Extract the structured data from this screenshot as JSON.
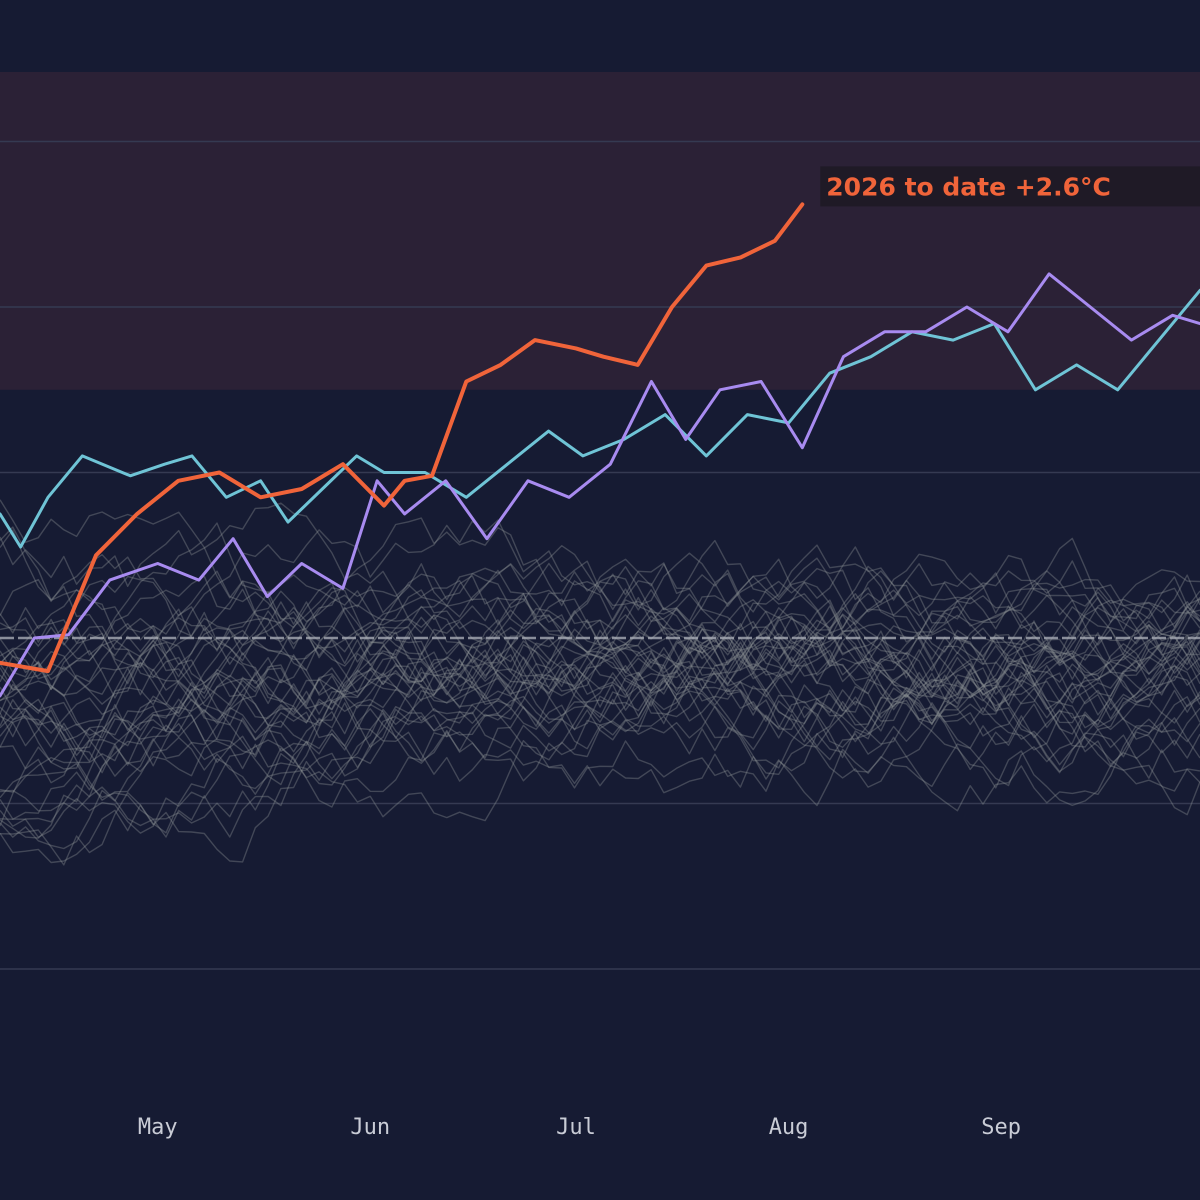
{
  "chart_data": {
    "type": "line",
    "title": "",
    "xlabel": "",
    "ylabel": "",
    "x_range": [
      "Apr 8",
      "Sep 30"
    ],
    "x_tick_labels": [
      "May",
      "Jun",
      "Jul",
      "Aug",
      "Sep"
    ],
    "x_tick_dates": [
      "May 1",
      "Jun 1",
      "Jul 1",
      "Aug 1",
      "Sep 1"
    ],
    "y_range_celsius": [
      -3.4,
      3.4
    ],
    "y_gridlines_celsius": [
      -2,
      -1,
      0,
      1,
      2,
      3
    ],
    "y_tick_labels": [],
    "baseline_celsius": 0,
    "warm_zone_above_celsius": 1.5,
    "grid": true,
    "annotation": {
      "text": "2026 to date  +2.6°C",
      "color": "#f0643a",
      "series": "2026 to date"
    },
    "highlight_series": [
      {
        "name": "2026 to date",
        "color": "#f0643a",
        "width": 4,
        "x": [
          "Apr 8",
          "Apr 15",
          "Apr 18",
          "Apr 22",
          "Apr 28",
          "May 4",
          "May 10",
          "May 16",
          "May 22",
          "May 28",
          "Jun 3",
          "Jun 6",
          "Jun 10",
          "Jun 15",
          "Jun 20",
          "Jun 25",
          "Jul 1",
          "Jul 5",
          "Jul 10",
          "Jul 15",
          "Jul 20",
          "Jul 25",
          "Jul 30",
          "Aug 3"
        ],
        "values": [
          -0.15,
          -0.2,
          0.1,
          0.5,
          0.75,
          0.95,
          1.0,
          0.85,
          0.9,
          1.05,
          0.8,
          0.95,
          0.98,
          1.55,
          1.65,
          1.8,
          1.75,
          1.7,
          1.65,
          2.0,
          2.25,
          2.3,
          2.4,
          2.62
        ]
      },
      {
        "name": "",
        "color": "#a88bf0",
        "width": 3,
        "x": [
          "Apr 8",
          "Apr 13",
          "Apr 18",
          "Apr 24",
          "May 1",
          "May 7",
          "May 12",
          "May 17",
          "May 22",
          "May 28",
          "Jun 2",
          "Jun 6",
          "Jun 12",
          "Jun 18",
          "Jun 24",
          "Jun 30",
          "Jul 6",
          "Jul 12",
          "Jul 17",
          "Jul 22",
          "Jul 28",
          "Aug 3",
          "Aug 9",
          "Aug 15",
          "Aug 21",
          "Aug 27",
          "Sep 2",
          "Sep 8",
          "Sep 14",
          "Sep 20",
          "Sep 26",
          "Sep 30"
        ],
        "values": [
          -0.35,
          0.0,
          0.02,
          0.35,
          0.45,
          0.35,
          0.6,
          0.25,
          0.45,
          0.3,
          0.95,
          0.75,
          0.95,
          0.6,
          0.95,
          0.85,
          1.05,
          1.55,
          1.2,
          1.5,
          1.55,
          1.15,
          1.7,
          1.85,
          1.85,
          2.0,
          1.85,
          2.2,
          2.0,
          1.8,
          1.95,
          1.9
        ]
      },
      {
        "name": "",
        "color": "#6fc4d6",
        "width": 3,
        "x": [
          "Apr 8",
          "Apr 11",
          "Apr 15",
          "Apr 20",
          "Apr 27",
          "May 2",
          "May 6",
          "May 11",
          "May 16",
          "May 20",
          "May 25",
          "May 30",
          "Jun 3",
          "Jun 9",
          "Jun 15",
          "Jun 21",
          "Jun 27",
          "Jul 2",
          "Jul 8",
          "Jul 14",
          "Jul 20",
          "Jul 26",
          "Aug 1",
          "Aug 7",
          "Aug 13",
          "Aug 19",
          "Aug 25",
          "Aug 31",
          "Sep 6",
          "Sep 12",
          "Sep 18",
          "Sep 24",
          "Sep 30"
        ],
        "values": [
          0.75,
          0.55,
          0.85,
          1.1,
          0.98,
          1.05,
          1.1,
          0.85,
          0.95,
          0.7,
          0.9,
          1.1,
          1.0,
          1.0,
          0.85,
          1.05,
          1.25,
          1.1,
          1.2,
          1.35,
          1.1,
          1.35,
          1.3,
          1.6,
          1.7,
          1.85,
          1.8,
          1.9,
          1.5,
          1.65,
          1.5,
          1.8,
          2.1
        ]
      }
    ],
    "background_years": {
      "count": 40,
      "color": "#8c9094",
      "value_range_celsius": [
        -1.85,
        1.45
      ]
    }
  }
}
